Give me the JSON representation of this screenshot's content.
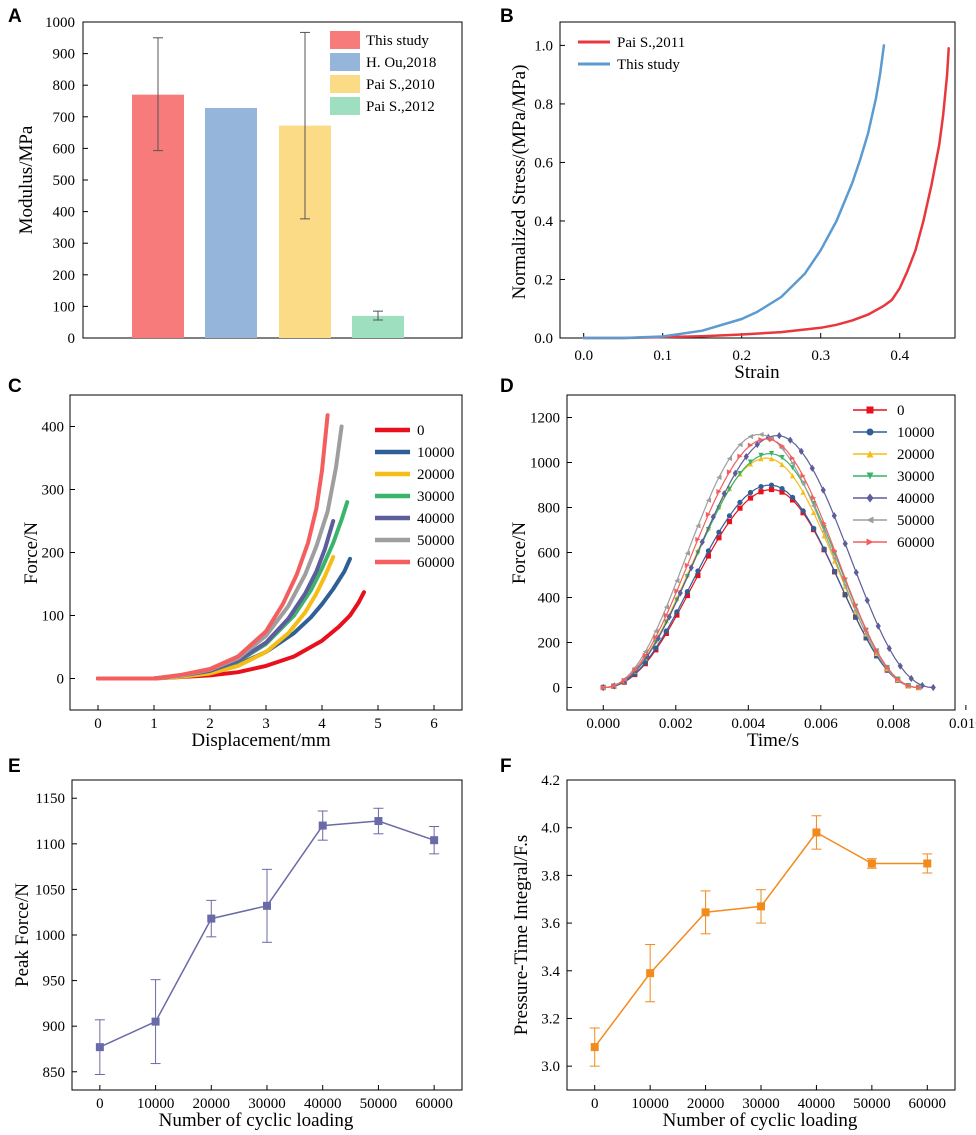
{
  "colors": {
    "axis": "#000000",
    "this_study_bar": "#f87b7b",
    "ou_bar": "#95b6da",
    "pai2010_bar": "#fcdb87",
    "pai2012_bar": "#9ddfbe",
    "pai2011_line": "#e8383d",
    "this_study_line": "#5b9bd1",
    "cycle_0": "#e8101c",
    "cycle_10000": "#2e5f96",
    "cycle_20000": "#f6bd16",
    "cycle_30000": "#39b46a",
    "cycle_40000": "#5c5d9a",
    "cycle_50000": "#9e9e9e",
    "cycle_60000": "#f45e5e",
    "d_0": "#e8101c",
    "d_10000": "#2e5f96",
    "d_20000": "#f6bd16",
    "d_30000": "#39b46a",
    "d_40000": "#5c5d9a",
    "d_50000": "#9e9e9e",
    "d_60000": "#f45e5e",
    "peak_force": "#6a6aa8",
    "integral": "#f28a1c"
  },
  "chart_data": [
    {
      "panel": "A",
      "type": "bar",
      "title": "",
      "xlabel": "",
      "ylabel": "Modulus/MPa",
      "ylim": [
        0,
        1000
      ],
      "yticks": [
        "0",
        "100",
        "200",
        "300",
        "400",
        "500",
        "600",
        "700",
        "800",
        "900",
        "1000"
      ],
      "categories": [
        "This study",
        "H. Ou,2018",
        "Pai S.,2010",
        "Pai S.,2012"
      ],
      "values": [
        770,
        728,
        672,
        70
      ],
      "errors": [
        [
          593,
          950
        ],
        null,
        [
          377,
          967
        ],
        [
          57,
          85
        ]
      ],
      "legend_position": "top-right"
    },
    {
      "panel": "B",
      "type": "line",
      "title": "",
      "xlabel": "Strain",
      "ylabel": "Normalized Stress/(MPa/MPa)",
      "xlim": [
        -0.03,
        0.47
      ],
      "ylim": [
        0,
        1.08
      ],
      "xticks": [
        "0.0",
        "0.1",
        "0.2",
        "0.3",
        "0.4"
      ],
      "yticks": [
        "0.0",
        "0.2",
        "0.4",
        "0.6",
        "0.8",
        "1.0"
      ],
      "series": [
        {
          "name": "Pai S.,2011",
          "x": [
            0.0,
            0.05,
            0.1,
            0.15,
            0.2,
            0.25,
            0.3,
            0.32,
            0.34,
            0.36,
            0.38,
            0.39,
            0.4,
            0.41,
            0.42,
            0.43,
            0.44,
            0.45,
            0.455,
            0.46,
            0.462
          ],
          "y": [
            0.0,
            0.0,
            0.003,
            0.006,
            0.012,
            0.02,
            0.035,
            0.045,
            0.06,
            0.08,
            0.11,
            0.13,
            0.17,
            0.23,
            0.3,
            0.4,
            0.52,
            0.66,
            0.76,
            0.9,
            0.99
          ]
        },
        {
          "name": "This study",
          "x": [
            0.0,
            0.05,
            0.1,
            0.15,
            0.2,
            0.22,
            0.25,
            0.28,
            0.3,
            0.32,
            0.34,
            0.35,
            0.36,
            0.37,
            0.375,
            0.38
          ],
          "y": [
            0.0,
            0.0,
            0.005,
            0.025,
            0.065,
            0.09,
            0.14,
            0.22,
            0.3,
            0.4,
            0.53,
            0.61,
            0.7,
            0.82,
            0.9,
            1.0
          ]
        }
      ],
      "legend_position": "top-left"
    },
    {
      "panel": "C",
      "type": "line",
      "title": "",
      "xlabel": "Displacement/mm",
      "ylabel": "Force/N",
      "xlim": [
        -0.5,
        6.5
      ],
      "ylim": [
        -50,
        450
      ],
      "xticks": [
        "0",
        "1",
        "2",
        "3",
        "4",
        "5",
        "6"
      ],
      "yticks": [
        "0",
        "100",
        "200",
        "300",
        "400"
      ],
      "series": [
        {
          "name": "0",
          "x": [
            0,
            1,
            2,
            2.5,
            3,
            3.5,
            4,
            4.3,
            4.5,
            4.65,
            4.75
          ],
          "y": [
            0,
            0,
            5,
            10,
            20,
            35,
            60,
            82,
            100,
            120,
            137
          ]
        },
        {
          "name": "10000",
          "x": [
            0,
            1,
            1.5,
            2,
            2.5,
            3,
            3.5,
            3.8,
            4,
            4.2,
            4.4,
            4.5
          ],
          "y": [
            0,
            0,
            5,
            10,
            22,
            42,
            72,
            97,
            118,
            142,
            170,
            190
          ]
        },
        {
          "name": "20000",
          "x": [
            0,
            1,
            1.5,
            2,
            2.5,
            3,
            3.4,
            3.7,
            3.9,
            4.05,
            4.2
          ],
          "y": [
            0,
            0,
            3,
            8,
            20,
            42,
            72,
            105,
            135,
            162,
            193
          ]
        },
        {
          "name": "30000",
          "x": [
            0,
            1,
            1.5,
            2,
            2.5,
            3,
            3.5,
            3.8,
            4,
            4.2,
            4.35,
            4.45
          ],
          "y": [
            0,
            0,
            5,
            12,
            27,
            55,
            100,
            140,
            175,
            215,
            252,
            280
          ]
        },
        {
          "name": "40000",
          "x": [
            0,
            1,
            1.5,
            2,
            2.5,
            3,
            3.4,
            3.7,
            3.9,
            4.05,
            4.2
          ],
          "y": [
            0,
            0,
            5,
            12,
            28,
            57,
            95,
            135,
            170,
            205,
            250
          ]
        },
        {
          "name": "50000",
          "x": [
            0,
            1,
            1.5,
            2,
            2.5,
            3,
            3.4,
            3.7,
            3.9,
            4.1,
            4.25,
            4.35
          ],
          "y": [
            0,
            0,
            5,
            14,
            32,
            68,
            115,
            165,
            210,
            265,
            335,
            400
          ]
        },
        {
          "name": "60000",
          "x": [
            0,
            1,
            1.5,
            2,
            2.5,
            3,
            3.3,
            3.55,
            3.75,
            3.9,
            4.0,
            4.1
          ],
          "y": [
            0,
            0,
            6,
            15,
            35,
            75,
            118,
            165,
            215,
            270,
            330,
            418
          ]
        }
      ],
      "legend_position": "top-right"
    },
    {
      "panel": "D",
      "type": "line",
      "title": "",
      "xlabel": "Time/s",
      "ylabel": "Force/N",
      "xlim": [
        -0.001,
        0.0097
      ],
      "ylim": [
        -100,
        1300
      ],
      "xticks": [
        "0.000",
        "0.002",
        "0.004",
        "0.006",
        "0.008",
        "0.010"
      ],
      "yticks": [
        "0",
        "200",
        "400",
        "600",
        "800",
        "1000",
        "1200"
      ],
      "series": [
        {
          "name": "0",
          "peak": 880,
          "peak_time": 0.00465
        },
        {
          "name": "10000",
          "peak": 900,
          "peak_time": 0.0046
        },
        {
          "name": "20000",
          "peak": 1020,
          "peak_time": 0.0045
        },
        {
          "name": "30000",
          "peak": 1040,
          "peak_time": 0.0046
        },
        {
          "name": "40000",
          "peak": 1120,
          "peak_time": 0.0048
        },
        {
          "name": "50000",
          "peak": 1125,
          "peak_time": 0.0043
        },
        {
          "name": "60000",
          "peak": 1105,
          "peak_time": 0.0045
        }
      ],
      "legend_position": "top-right"
    },
    {
      "panel": "E",
      "type": "line",
      "title": "",
      "xlabel": "Number of cyclic loading",
      "ylabel": "Peak Force/N",
      "xlim": [
        -5000,
        65000
      ],
      "ylim": [
        830,
        1170
      ],
      "xticks": [
        "0",
        "10000",
        "20000",
        "30000",
        "40000",
        "50000",
        "60000"
      ],
      "yticks": [
        "850",
        "900",
        "950",
        "1000",
        "1050",
        "1100",
        "1150"
      ],
      "x": [
        0,
        10000,
        20000,
        30000,
        40000,
        50000,
        60000
      ],
      "values": [
        877,
        905,
        1018,
        1032,
        1120,
        1125,
        1104
      ],
      "errors": [
        30,
        46,
        20,
        40,
        16,
        14,
        15
      ]
    },
    {
      "panel": "F",
      "type": "line",
      "title": "",
      "xlabel": "Number of cyclic loading",
      "ylabel": "Pressure-Time Integral/F.s",
      "xlim": [
        -5000,
        65000
      ],
      "ylim": [
        2.9,
        4.2
      ],
      "xticks": [
        "0",
        "10000",
        "20000",
        "30000",
        "40000",
        "50000",
        "60000"
      ],
      "yticks": [
        "3.0",
        "3.2",
        "3.4",
        "3.6",
        "3.8",
        "4.0",
        "4.2"
      ],
      "x": [
        0,
        10000,
        20000,
        30000,
        40000,
        50000,
        60000
      ],
      "values": [
        3.08,
        3.39,
        3.645,
        3.67,
        3.98,
        3.85,
        3.85
      ],
      "errors": [
        0.08,
        0.12,
        0.09,
        0.07,
        0.07,
        0.02,
        0.04
      ]
    }
  ]
}
